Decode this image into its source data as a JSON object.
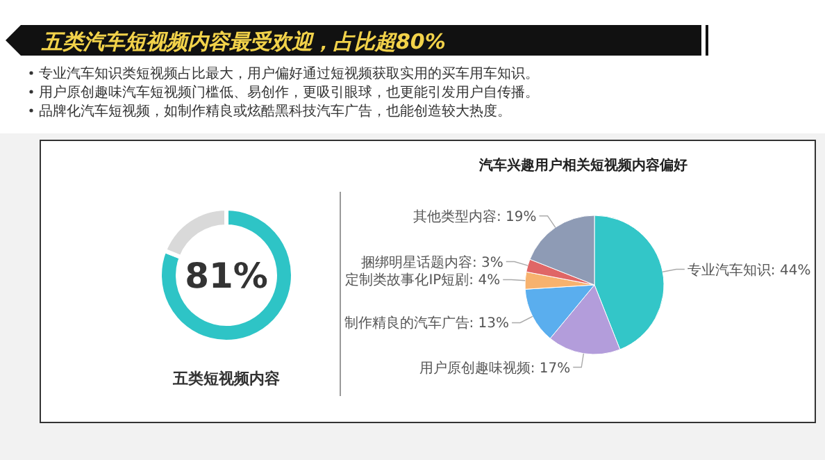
{
  "chart_data": [
    {
      "type": "donut",
      "title": "五类汽车短视频内容最受欢迎，占比超80%",
      "annotations": [
        "专业汽车知识类短视频占比最大，用户偏好通过短视频获取实用的买车用车知识。",
        "用户原创趣味汽车短视频门槛低、易创作，更吸引眼球，也更能引发用户自传播。",
        "品牌化汽车短视频，如制作精良或炫酷黑科技汽车广告，也能创造较大热度。"
      ],
      "xlabel": "五类短视频内容",
      "categories": [
        null,
        null
      ],
      "values": [
        81,
        19
      ],
      "colors": [
        "#2ec4c6",
        "#d9d9d9"
      ],
      "value_labels": [
        "81%",
        null
      ]
    },
    {
      "type": "pie",
      "title": "汽车兴趣用户相关短视频内容偏好",
      "categories": [
        "专业汽车知识",
        "用户原创趣味视频",
        "制作精良的汽车广告",
        "定制类故事化IP短剧",
        "捆绑明星话题内容",
        "其他类型内容"
      ],
      "values": [
        44,
        17,
        13,
        4,
        3,
        19
      ],
      "colors": [
        "#33c6c8",
        "#b39ddb",
        "#5aaeee",
        "#f7b26e",
        "#e06666",
        "#8e9bb5"
      ],
      "value_labels": [
        "44%",
        "17%",
        "13%",
        "4%",
        "3%",
        "19%"
      ]
    }
  ]
}
